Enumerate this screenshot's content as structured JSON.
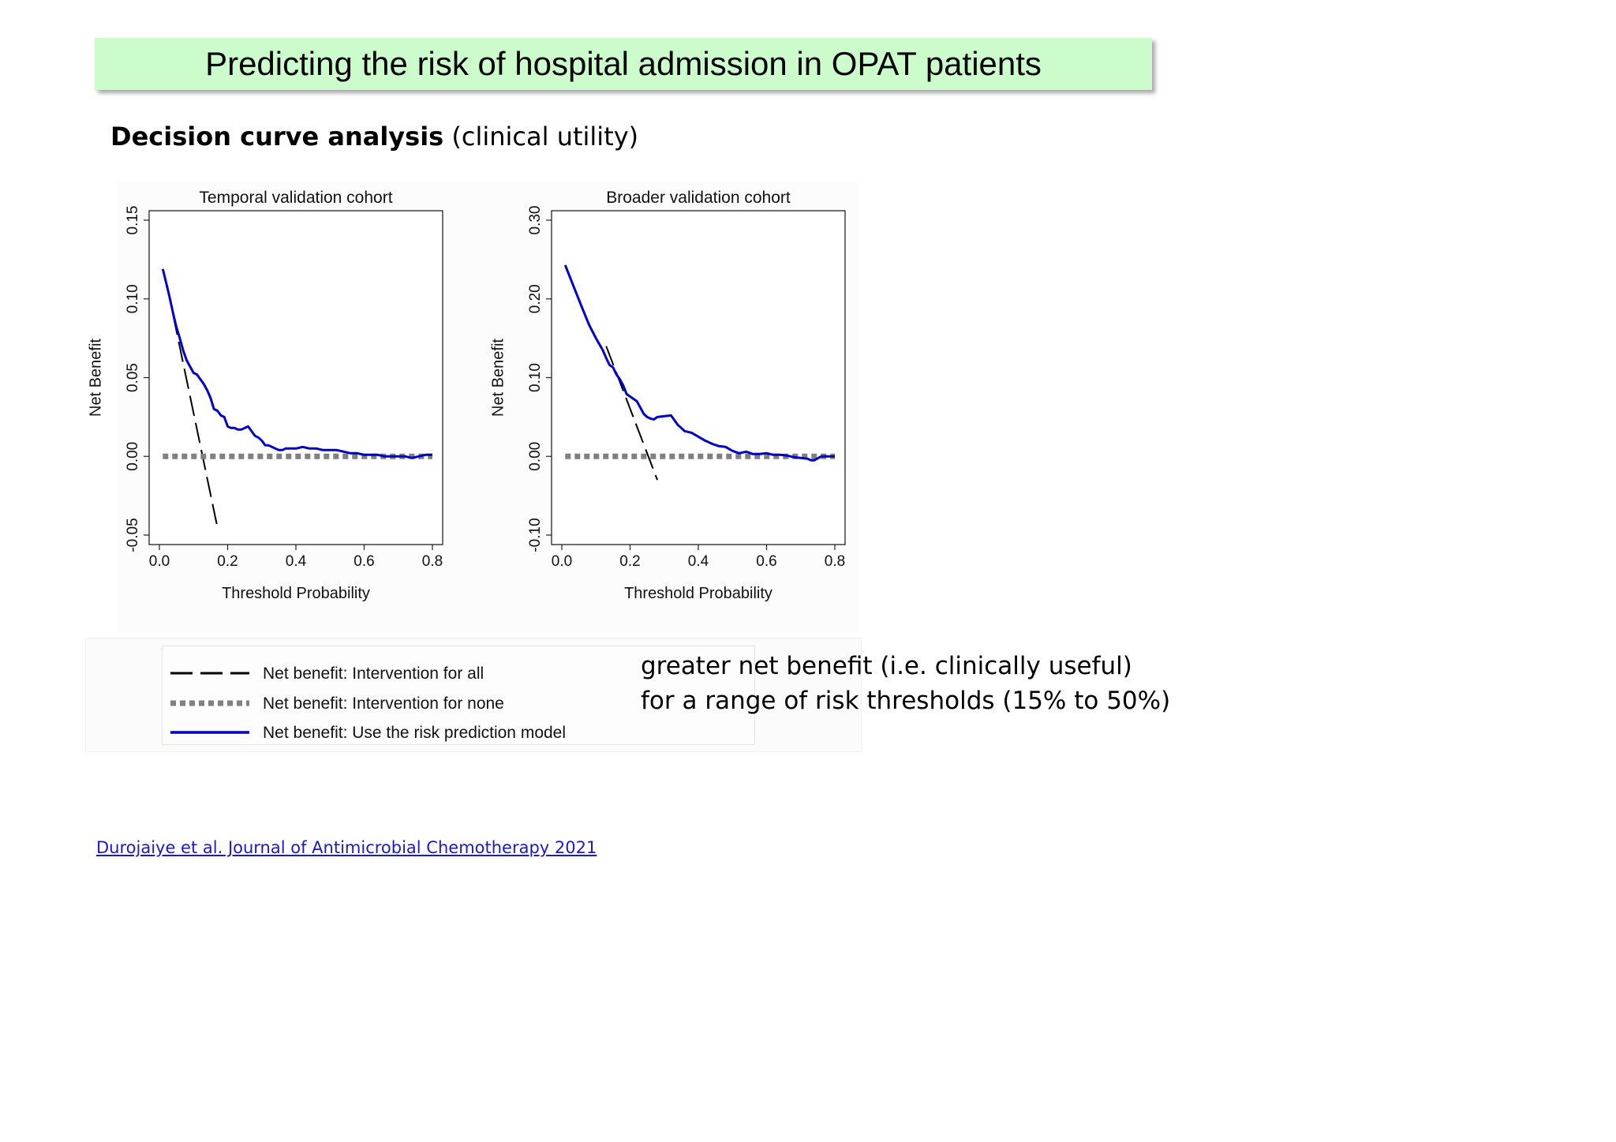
{
  "slide": {
    "title": "Predicting the risk of hospital admission in OPAT patients",
    "subtitle_bold": "Decision curve analysis",
    "subtitle_rest": "(clinical utility)",
    "note_lines": [
      "greater net benefit (i.e. clinically useful)",
      "for a range of risk thresholds (15% to 50%)"
    ],
    "citation": "Durojaiye et al. Journal of Antimicrobial Chemotherapy 2021"
  },
  "legend": {
    "items": [
      {
        "label": "Net benefit: Intervention for all",
        "style": "dashed",
        "color": "#000000"
      },
      {
        "label": "Net benefit: Intervention for none",
        "style": "dotted",
        "color": "#808080"
      },
      {
        "label": "Net benefit: Use the risk prediction model",
        "style": "solid",
        "color": "#0000cc"
      }
    ]
  },
  "chart_data": [
    {
      "type": "line",
      "title": "Temporal validation cohort",
      "xlabel": "Threshold Probability",
      "ylabel": "Net Benefit",
      "xlim": [
        0.0,
        0.8
      ],
      "ylim": [
        -0.05,
        0.15
      ],
      "xticks": [
        "0.0",
        "0.2",
        "0.4",
        "0.6",
        "0.8"
      ],
      "yticks": [
        "-0.05",
        "0.00",
        "0.05",
        "0.10",
        "0.15"
      ],
      "grid": false,
      "series": [
        {
          "name": "Net benefit: Intervention for all",
          "style": "dashed",
          "color": "#000000",
          "x": [
            0.04,
            0.17
          ],
          "y": [
            0.09,
            -0.045
          ]
        },
        {
          "name": "Net benefit: Intervention for none",
          "style": "dotted",
          "color": "#808080",
          "x": [
            0.01,
            0.8
          ],
          "y": [
            0.0,
            0.0
          ]
        },
        {
          "name": "Net benefit: Use the risk prediction model",
          "style": "solid",
          "color": "#0000cc",
          "x": [
            0.01,
            0.02,
            0.03,
            0.04,
            0.05,
            0.06,
            0.07,
            0.08,
            0.09,
            0.1,
            0.11,
            0.12,
            0.13,
            0.14,
            0.15,
            0.16,
            0.17,
            0.18,
            0.19,
            0.2,
            0.21,
            0.22,
            0.23,
            0.24,
            0.25,
            0.26,
            0.27,
            0.28,
            0.29,
            0.3,
            0.31,
            0.32,
            0.33,
            0.34,
            0.35,
            0.36,
            0.37,
            0.38,
            0.4,
            0.42,
            0.44,
            0.46,
            0.48,
            0.5,
            0.52,
            0.54,
            0.56,
            0.58,
            0.6,
            0.62,
            0.64,
            0.66,
            0.68,
            0.7,
            0.72,
            0.74,
            0.76,
            0.78,
            0.79,
            0.8
          ],
          "y": [
            0.119,
            0.11,
            0.101,
            0.091,
            0.082,
            0.075,
            0.067,
            0.061,
            0.057,
            0.053,
            0.052,
            0.049,
            0.046,
            0.042,
            0.037,
            0.03,
            0.029,
            0.026,
            0.025,
            0.019,
            0.018,
            0.018,
            0.017,
            0.017,
            0.018,
            0.019,
            0.016,
            0.013,
            0.012,
            0.01,
            0.007,
            0.007,
            0.006,
            0.005,
            0.004,
            0.004,
            0.005,
            0.005,
            0.005,
            0.006,
            0.005,
            0.005,
            0.004,
            0.004,
            0.004,
            0.003,
            0.002,
            0.002,
            0.001,
            0.001,
            0.001,
            0.0,
            0.0,
            0.0,
            0.0,
            -0.001,
            0.0,
            0.001,
            0.001,
            0.001
          ]
        }
      ]
    },
    {
      "type": "line",
      "title": "Broader validation cohort",
      "xlabel": "Threshold Probability",
      "ylabel": "Net Benefit",
      "xlim": [
        0.0,
        0.8
      ],
      "ylim": [
        -0.1,
        0.3
      ],
      "xticks": [
        "0.0",
        "0.2",
        "0.4",
        "0.6",
        "0.8"
      ],
      "yticks": [
        "-0.10",
        "0.00",
        "0.10",
        "0.20",
        "0.30"
      ],
      "grid": false,
      "series": [
        {
          "name": "Net benefit: Intervention for all",
          "style": "dashed",
          "color": "#000000",
          "x": [
            0.13,
            0.28
          ],
          "y": [
            0.14,
            -0.03
          ]
        },
        {
          "name": "Net benefit: Intervention for none",
          "style": "dotted",
          "color": "#808080",
          "x": [
            0.01,
            0.8
          ],
          "y": [
            0.0,
            0.0
          ]
        },
        {
          "name": "Net benefit: Use the risk prediction model",
          "style": "solid",
          "color": "#0000cc",
          "x": [
            0.01,
            0.02,
            0.04,
            0.06,
            0.08,
            0.1,
            0.12,
            0.13,
            0.14,
            0.15,
            0.16,
            0.17,
            0.18,
            0.19,
            0.2,
            0.21,
            0.22,
            0.23,
            0.24,
            0.25,
            0.26,
            0.27,
            0.28,
            0.3,
            0.32,
            0.33,
            0.34,
            0.35,
            0.36,
            0.37,
            0.38,
            0.4,
            0.42,
            0.44,
            0.46,
            0.48,
            0.5,
            0.52,
            0.54,
            0.56,
            0.58,
            0.6,
            0.62,
            0.64,
            0.66,
            0.68,
            0.7,
            0.72,
            0.73,
            0.74,
            0.76,
            0.78,
            0.8
          ],
          "y": [
            0.243,
            0.232,
            0.21,
            0.188,
            0.167,
            0.15,
            0.135,
            0.125,
            0.116,
            0.113,
            0.104,
            0.098,
            0.09,
            0.079,
            0.076,
            0.073,
            0.07,
            0.062,
            0.054,
            0.05,
            0.048,
            0.047,
            0.05,
            0.051,
            0.052,
            0.046,
            0.04,
            0.036,
            0.032,
            0.031,
            0.03,
            0.025,
            0.02,
            0.016,
            0.013,
            0.012,
            0.007,
            0.004,
            0.006,
            0.003,
            0.003,
            0.004,
            0.002,
            0.002,
            0.001,
            -0.001,
            -0.002,
            -0.003,
            -0.005,
            -0.005,
            0.0,
            0.0,
            0.0
          ]
        }
      ]
    }
  ]
}
